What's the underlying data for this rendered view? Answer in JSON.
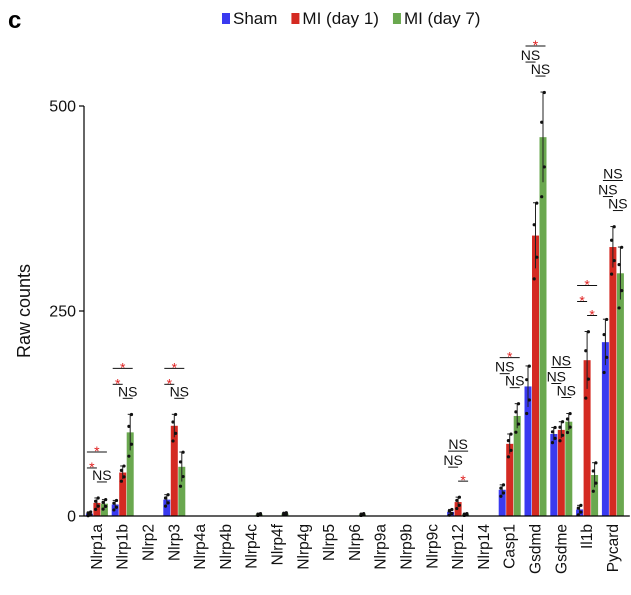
{
  "panel_label": "c",
  "chart_data": {
    "type": "bar",
    "ylabel": "Raw counts",
    "xlabel": "",
    "ylim": [
      0,
      560
    ],
    "yticks": [
      0,
      250,
      500
    ],
    "grid": false,
    "legend_position": "top",
    "error_bars": "mean ± s.e.m. with individual points",
    "categories": [
      "Nlrp1a",
      "Nlrp1b",
      "Nlrp2",
      "Nlrp3",
      "Nlrp4a",
      "Nlrp4b",
      "Nlrp4c",
      "Nlrp4f",
      "Nlrp4g",
      "Nlrp5",
      "Nlrp6",
      "Nlrp9a",
      "Nlrp9b",
      "Nlrp9c",
      "Nlrp12",
      "Nlrp14",
      "Casp1",
      "Gsdmd",
      "Gsdme",
      "Il1b",
      "Pycard"
    ],
    "series": [
      {
        "name": "Sham",
        "color": "#3a3af0",
        "values": [
          3,
          14,
          0,
          20,
          0,
          0,
          0,
          0,
          0,
          0,
          0,
          0,
          0,
          0,
          5,
          0,
          32,
          158,
          100,
          8,
          212
        ],
        "errors": [
          2,
          5,
          0,
          6,
          0,
          0,
          0,
          0,
          0,
          0,
          0,
          0,
          0,
          0,
          3,
          0,
          6,
          25,
          8,
          5,
          28
        ]
      },
      {
        "name": "MI (day 1)",
        "color": "#d42a22",
        "values": [
          16,
          53,
          0,
          110,
          0,
          0,
          0,
          0,
          0,
          0,
          0,
          0,
          0,
          0,
          17,
          0,
          88,
          342,
          105,
          190,
          328
        ],
        "errors": [
          6,
          8,
          0,
          14,
          0,
          0,
          0,
          0,
          0,
          0,
          0,
          0,
          0,
          0,
          6,
          0,
          12,
          40,
          10,
          35,
          25
        ]
      },
      {
        "name": "MI (day 7)",
        "color": "#6aa84f",
        "values": [
          15,
          102,
          0,
          60,
          0,
          0,
          2,
          3,
          0,
          0,
          2,
          0,
          0,
          0,
          2,
          0,
          122,
          462,
          115,
          50,
          296
        ],
        "errors": [
          5,
          22,
          0,
          18,
          0,
          0,
          1,
          1,
          0,
          0,
          1,
          0,
          0,
          0,
          1,
          0,
          15,
          55,
          10,
          15,
          32
        ]
      }
    ],
    "significance": [
      {
        "category": "Nlrp1a",
        "labels": [
          "*",
          "*",
          "NS"
        ]
      },
      {
        "category": "Nlrp1b",
        "labels": [
          "*",
          "*",
          "NS"
        ]
      },
      {
        "category": "Nlrp3",
        "labels": [
          "*",
          "*",
          "NS"
        ]
      },
      {
        "category": "Nlrp12",
        "labels": [
          "NS",
          "NS",
          "*"
        ]
      },
      {
        "category": "Casp1",
        "labels": [
          "*",
          "NS",
          "NS"
        ]
      },
      {
        "category": "Gsdmd",
        "labels": [
          "*",
          "NS",
          "NS"
        ]
      },
      {
        "category": "Gsdme",
        "labels": [
          "NS",
          "NS",
          "NS"
        ]
      },
      {
        "category": "Il1b",
        "labels": [
          "*",
          "*",
          "*"
        ]
      },
      {
        "category": "Pycard",
        "labels": [
          "NS",
          "NS",
          "NS"
        ]
      }
    ]
  }
}
